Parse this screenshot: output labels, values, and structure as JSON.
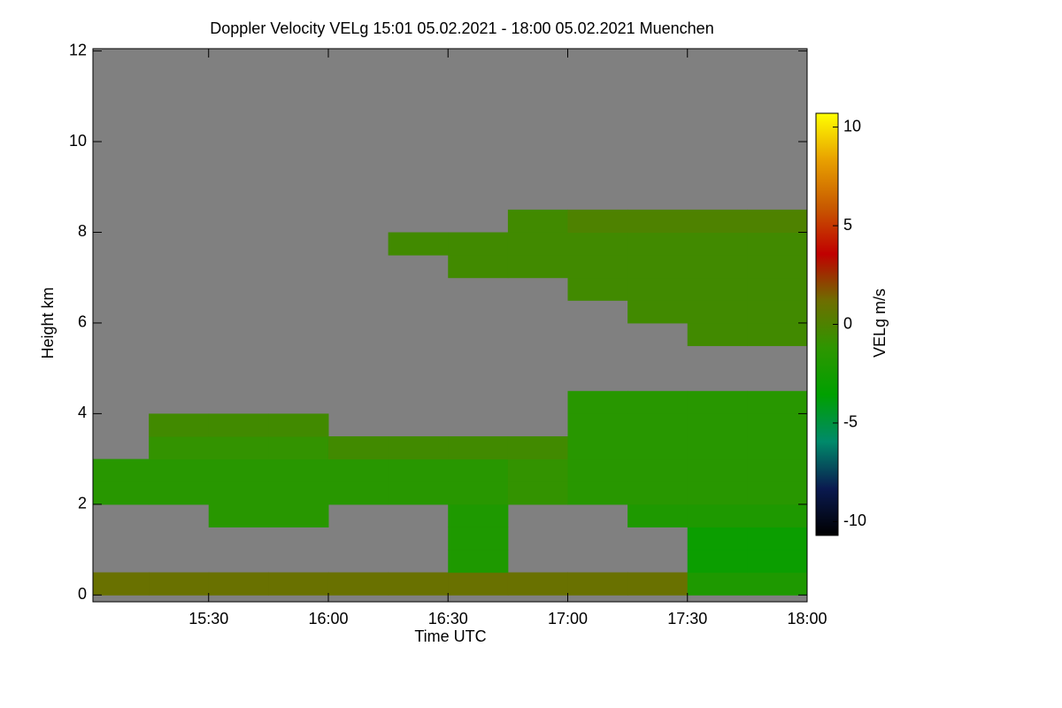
{
  "chart_data": {
    "type": "heatmap",
    "title": "Doppler Velocity VELg   15:01 05.02.2021 - 18:00 05.02.2021 Muenchen",
    "xlabel": "Time UTC",
    "ylabel": "Height km",
    "colorbar_label": "VELg m/s",
    "xlim": [
      15.0167,
      18.0
    ],
    "xticks": [
      {
        "value": 15.5,
        "label": "15:30"
      },
      {
        "value": 16.0,
        "label": "16:00"
      },
      {
        "value": 16.5,
        "label": "16:30"
      },
      {
        "value": 17.0,
        "label": "17:00"
      },
      {
        "value": 17.5,
        "label": "17:30"
      },
      {
        "value": 18.0,
        "label": "18:00"
      }
    ],
    "ylim": [
      -0.15,
      12.05
    ],
    "yticks": [
      0,
      2,
      4,
      6,
      8,
      10,
      12
    ],
    "zlim": [
      -10.7,
      10.7
    ],
    "zticks": [
      -10,
      -5,
      0,
      5,
      10
    ],
    "colorscale": [
      "#000000",
      "#0a1a50",
      "#008a6a",
      "#00a000",
      "#2e9600",
      "#6e6e00",
      "#c00000",
      "#c85a00",
      "#e8a000",
      "#ffff00"
    ],
    "no_data_color": "#808080",
    "x_edges": [
      15.0167,
      15.25,
      15.5,
      15.75,
      16.0,
      16.25,
      16.5,
      16.75,
      17.0,
      17.25,
      17.5,
      17.75,
      18.0
    ],
    "y_edges": [
      0,
      0.5,
      1,
      1.5,
      2,
      2.5,
      3,
      3.5,
      4,
      4.5,
      5,
      5.5,
      6,
      6.5,
      7,
      7.5,
      8,
      8.5,
      9
    ],
    "z": [
      [
        1,
        1,
        1,
        1,
        1,
        1,
        1,
        1,
        1,
        1,
        -2,
        -2
      ],
      [
        null,
        null,
        null,
        null,
        null,
        null,
        -2,
        null,
        null,
        null,
        -3,
        -3
      ],
      [
        null,
        null,
        null,
        null,
        null,
        null,
        -2,
        null,
        null,
        null,
        -3,
        -3
      ],
      [
        null,
        null,
        -1.5,
        -1.5,
        null,
        null,
        -2,
        null,
        null,
        -2,
        -2,
        -2
      ],
      [
        -1.5,
        -1.5,
        -1.5,
        -1.5,
        -1.5,
        -1.5,
        -1.5,
        -1,
        -1.5,
        -1.5,
        -1.5,
        -1.5
      ],
      [
        -1.5,
        -1.5,
        -1.5,
        -1.5,
        -1.5,
        -1.5,
        -1.5,
        -1,
        -1.5,
        -1.5,
        -1.5,
        -1.5
      ],
      [
        null,
        -1,
        -1,
        -1,
        -0.5,
        -0.5,
        -0.5,
        -0.5,
        -1.5,
        -1.5,
        -1.5,
        -1.5
      ],
      [
        null,
        -0.5,
        -0.5,
        -0.5,
        null,
        null,
        null,
        null,
        -1.5,
        -1.5,
        -1.5,
        -1.5
      ],
      [
        null,
        null,
        null,
        null,
        null,
        null,
        null,
        null,
        -1.5,
        -1.5,
        -1.5,
        -1.5
      ],
      [
        null,
        null,
        null,
        null,
        null,
        null,
        null,
        null,
        null,
        null,
        null,
        null
      ],
      [
        null,
        null,
        null,
        null,
        null,
        null,
        null,
        null,
        null,
        null,
        null,
        null
      ],
      [
        null,
        null,
        null,
        null,
        null,
        null,
        null,
        null,
        null,
        null,
        -0.5,
        -0.5
      ],
      [
        null,
        null,
        null,
        null,
        null,
        null,
        null,
        null,
        null,
        -0.5,
        -0.5,
        -0.5
      ],
      [
        null,
        null,
        null,
        null,
        null,
        null,
        null,
        null,
        -0.5,
        -0.5,
        -0.5,
        -0.5
      ],
      [
        null,
        null,
        null,
        null,
        null,
        null,
        -0.5,
        -0.5,
        -0.5,
        -0.5,
        -0.5,
        -0.5
      ],
      [
        null,
        null,
        null,
        null,
        null,
        -0.5,
        -0.5,
        -0.5,
        -0.5,
        -0.5,
        -0.5,
        -0.5
      ],
      [
        null,
        null,
        null,
        null,
        null,
        null,
        null,
        -0.5,
        0,
        0,
        0,
        0
      ],
      [
        null,
        null,
        null,
        null,
        null,
        null,
        null,
        null,
        null,
        null,
        null,
        null
      ]
    ]
  }
}
